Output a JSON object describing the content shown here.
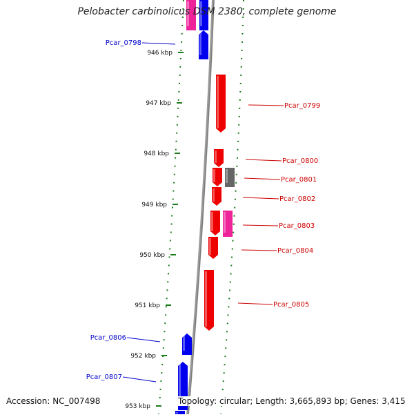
{
  "title": "Pelobacter carbinolicus DSM 2380, complete genome",
  "footer": {
    "accession": "Accession: NC_007498",
    "topology": "Topology: circular; Length: 3,665,893 bp; Genes: 3,415"
  },
  "colors": {
    "forward_gene": "#0000ee",
    "reverse_gene": "#ee0000",
    "pink_feature": "#ee2299",
    "gray_feature": "#666666",
    "backbone": "#999999",
    "dots": "#1a7a1a",
    "label_forward": "#0000cc",
    "label_reverse": "#cc0000"
  },
  "ticks": [
    {
      "label": "946 kbp"
    },
    {
      "label": "947 kbp"
    },
    {
      "label": "948 kbp"
    },
    {
      "label": "949 kbp"
    },
    {
      "label": "950 kbp"
    },
    {
      "label": "951 kbp"
    },
    {
      "label": "952 kbp"
    },
    {
      "label": "953 kbp"
    }
  ],
  "genes": [
    {
      "label": "Pcar_0798",
      "strand": "forward"
    },
    {
      "label": "Pcar_0799",
      "strand": "reverse"
    },
    {
      "label": "Pcar_0800",
      "strand": "reverse"
    },
    {
      "label": "Pcar_0801",
      "strand": "reverse"
    },
    {
      "label": "Pcar_0802",
      "strand": "reverse"
    },
    {
      "label": "Pcar_0803",
      "strand": "reverse"
    },
    {
      "label": "Pcar_0804",
      "strand": "reverse"
    },
    {
      "label": "Pcar_0805",
      "strand": "reverse"
    },
    {
      "label": "Pcar_0806",
      "strand": "forward"
    },
    {
      "label": "Pcar_0807",
      "strand": "forward"
    }
  ]
}
